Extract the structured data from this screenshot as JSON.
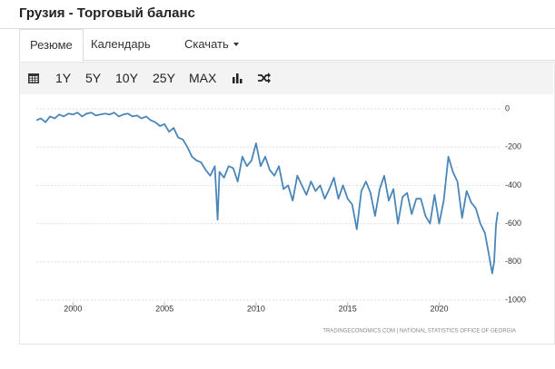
{
  "header": {
    "title": "Грузия - Торговый баланс"
  },
  "tabs": [
    "Резюме",
    "Календарь",
    "Скачать"
  ],
  "toolbar": {
    "buttons": [
      "1Y",
      "5Y",
      "10Y",
      "25Y",
      "MAX"
    ]
  },
  "chart_data": {
    "type": "line",
    "color": "#4a86b8",
    "x": [
      1998,
      1998.25,
      1998.5,
      1998.75,
      1999,
      1999.25,
      1999.5,
      1999.75,
      2000,
      2000.25,
      2000.5,
      2000.75,
      2001,
      2001.25,
      2001.5,
      2001.75,
      2002,
      2002.25,
      2002.5,
      2002.75,
      2003,
      2003.25,
      2003.5,
      2003.75,
      2004,
      2004.25,
      2004.5,
      2004.75,
      2005,
      2005.25,
      2005.5,
      2005.75,
      2006,
      2006.25,
      2006.5,
      2006.75,
      2007,
      2007.25,
      2007.5,
      2007.75,
      2007.9,
      2008,
      2008.25,
      2008.5,
      2008.75,
      2009,
      2009.25,
      2009.5,
      2009.75,
      2010,
      2010.25,
      2010.5,
      2010.75,
      2011,
      2011.25,
      2011.5,
      2011.75,
      2012,
      2012.25,
      2012.5,
      2012.75,
      2013,
      2013.25,
      2013.5,
      2013.75,
      2014,
      2014.25,
      2014.5,
      2014.75,
      2015,
      2015.25,
      2015.5,
      2015.75,
      2016,
      2016.25,
      2016.5,
      2016.75,
      2017,
      2017.25,
      2017.5,
      2017.75,
      2018,
      2018.25,
      2018.5,
      2018.75,
      2019,
      2019.25,
      2019.5,
      2019.75,
      2020,
      2020.25,
      2020.5,
      2020.75,
      2021,
      2021.25,
      2021.5,
      2021.75,
      2022,
      2022.25,
      2022.5,
      2022.75,
      2022.9,
      2023,
      2023.1,
      2023.2
    ],
    "values": [
      -60,
      -50,
      -70,
      -40,
      -50,
      -30,
      -40,
      -25,
      -30,
      -20,
      -40,
      -25,
      -20,
      -35,
      -30,
      -25,
      -30,
      -20,
      -40,
      -30,
      -25,
      -40,
      -35,
      -50,
      -40,
      -60,
      -70,
      -90,
      -80,
      -120,
      -100,
      -150,
      -160,
      -200,
      -250,
      -270,
      -280,
      -320,
      -350,
      -300,
      -580,
      -330,
      -360,
      -300,
      -310,
      -380,
      -250,
      -300,
      -270,
      -180,
      -300,
      -250,
      -320,
      -350,
      -300,
      -420,
      -400,
      -480,
      -350,
      -400,
      -450,
      -380,
      -430,
      -400,
      -470,
      -420,
      -360,
      -470,
      -400,
      -470,
      -500,
      -630,
      -430,
      -380,
      -440,
      -560,
      -420,
      -350,
      -480,
      -420,
      -600,
      -460,
      -440,
      -550,
      -470,
      -470,
      -560,
      -600,
      -450,
      -600,
      -480,
      -250,
      -330,
      -380,
      -570,
      -430,
      -490,
      -520,
      -600,
      -650,
      -780,
      -860,
      -800,
      -610,
      -540
    ],
    "xlim": [
      1998,
      2023.3
    ],
    "xticks": [
      2000,
      2005,
      2010,
      2015,
      2020
    ],
    "ylim": [
      -1000,
      0
    ],
    "yticks": [
      0,
      -200,
      -400,
      -600,
      -800,
      -1000
    ],
    "grid": true,
    "source": "TRADINGECONOMICS.COM  |  NATIONAL STATISTICS OFFICE OF GEORGIA"
  }
}
